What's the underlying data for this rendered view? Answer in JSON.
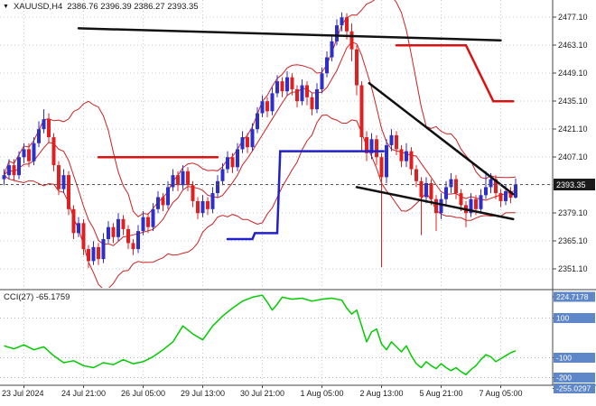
{
  "header": {
    "marker": "▼",
    "symbol": "XAUUSD,H4",
    "ohlc": "2386.76 2396.39 2386.27 2393.35"
  },
  "price_axis": {
    "labels": [
      "2477.10",
      "2463.10",
      "2449.10",
      "2435.10",
      "2421.10",
      "2407.10",
      "2379.10",
      "2365.10",
      "2351.10"
    ],
    "current": "2393.35"
  },
  "time_axis": {
    "labels": [
      "23 Jul 2024",
      "24 Jul 21:00",
      "26 Jul 05:00",
      "29 Jul 13:00",
      "30 Jul 21:00",
      "1 Aug 05:00",
      "2 Aug 13:00",
      "5 Aug 21:00",
      "7 Aug 05:00"
    ]
  },
  "indicator_panel": {
    "label": "CCI(27) -65.1759",
    "name": "CCI",
    "period": 27,
    "current_value": -65.1759,
    "axis_max": "224.7178",
    "axis_min": "-255.0297",
    "levels": [
      100,
      -100,
      -200
    ]
  },
  "colors": {
    "background": "#ffffff",
    "grid": "#c9c9c9",
    "bull": "#2e2ec8",
    "bear": "#e02020",
    "band": "#cc2222",
    "level_blue": "#2020cc",
    "resistance_red": "#dd1111",
    "trendline": "#111111",
    "cci_line": "#00cc00",
    "axis_text": "#1a1a1a",
    "price_box_bg": "#1a1a1a",
    "price_box_text": "#ffffff",
    "cci_level_box_bg": "#5d87c9",
    "separator": "#a0a0a0"
  },
  "chart_data": {
    "type": "candlestick",
    "symbol": "XAUUSD",
    "timeframe": "H4",
    "title": "XAUUSD,H4",
    "y_axis": {
      "min": 2351.1,
      "max": 2477.1,
      "tick_step": 14.0
    },
    "x_grid_candle_indices": [
      4,
      16,
      28,
      40,
      52,
      64,
      76,
      88,
      100
    ],
    "current_price": 2393.35,
    "candles": [
      [
        2396,
        2401,
        2393,
        2398
      ],
      [
        2398,
        2406,
        2396,
        2403
      ],
      [
        2403,
        2406,
        2395,
        2398
      ],
      [
        2398,
        2410,
        2396,
        2407
      ],
      [
        2407,
        2414,
        2404,
        2411
      ],
      [
        2411,
        2414,
        2402,
        2405
      ],
      [
        2405,
        2417,
        2403,
        2414
      ],
      [
        2414,
        2425,
        2412,
        2421
      ],
      [
        2421,
        2431,
        2419,
        2426
      ],
      [
        2426,
        2429,
        2414,
        2417
      ],
      [
        2417,
        2419,
        2400,
        2403
      ],
      [
        2403,
        2405,
        2388,
        2391
      ],
      [
        2391,
        2401,
        2389,
        2398
      ],
      [
        2398,
        2400,
        2378,
        2381
      ],
      [
        2381,
        2383,
        2366,
        2369
      ],
      [
        2369,
        2377,
        2367,
        2374
      ],
      [
        2374,
        2376,
        2358,
        2361
      ],
      [
        2361,
        2363,
        2351.5,
        2355
      ],
      [
        2355,
        2365,
        2353,
        2362
      ],
      [
        2362,
        2364,
        2353,
        2356
      ],
      [
        2356,
        2369,
        2354,
        2366
      ],
      [
        2366,
        2375,
        2364,
        2372
      ],
      [
        2372,
        2374,
        2364,
        2367
      ],
      [
        2367,
        2379,
        2365,
        2376
      ],
      [
        2376,
        2378,
        2368,
        2371
      ],
      [
        2371,
        2373,
        2361,
        2364
      ],
      [
        2364,
        2366,
        2358,
        2361
      ],
      [
        2361,
        2373,
        2359,
        2370
      ],
      [
        2370,
        2380,
        2368,
        2377
      ],
      [
        2377,
        2379,
        2369,
        2372
      ],
      [
        2372,
        2384,
        2370,
        2381
      ],
      [
        2381,
        2390,
        2379,
        2387
      ],
      [
        2387,
        2389,
        2380,
        2383
      ],
      [
        2383,
        2395,
        2381,
        2392
      ],
      [
        2392,
        2401,
        2390,
        2398
      ],
      [
        2398,
        2400,
        2390,
        2393
      ],
      [
        2393,
        2403,
        2391,
        2400
      ],
      [
        2400,
        2402,
        2390,
        2393
      ],
      [
        2393,
        2395,
        2382,
        2385
      ],
      [
        2385,
        2387,
        2376,
        2379
      ],
      [
        2379,
        2388,
        2377,
        2385
      ],
      [
        2385,
        2387,
        2378,
        2381
      ],
      [
        2381,
        2392,
        2379,
        2389
      ],
      [
        2389,
        2398,
        2387,
        2395
      ],
      [
        2395,
        2404,
        2393,
        2401
      ],
      [
        2401,
        2410,
        2399,
        2407
      ],
      [
        2407,
        2409,
        2399,
        2402
      ],
      [
        2402,
        2414,
        2400,
        2411
      ],
      [
        2411,
        2420,
        2409,
        2417
      ],
      [
        2417,
        2419,
        2409,
        2412
      ],
      [
        2412,
        2424,
        2410,
        2421
      ],
      [
        2421,
        2432,
        2419,
        2429
      ],
      [
        2429,
        2438,
        2427,
        2435
      ],
      [
        2435,
        2437,
        2427,
        2430
      ],
      [
        2430,
        2442,
        2428,
        2439
      ],
      [
        2439,
        2448,
        2437,
        2445
      ],
      [
        2445,
        2447,
        2437,
        2440
      ],
      [
        2440,
        2450,
        2438,
        2447
      ],
      [
        2447,
        2449,
        2438,
        2441
      ],
      [
        2441,
        2443,
        2432,
        2435
      ],
      [
        2435,
        2446,
        2433,
        2443
      ],
      [
        2443,
        2445,
        2433,
        2437
      ],
      [
        2437,
        2439,
        2428,
        2431
      ],
      [
        2431,
        2444,
        2429,
        2441
      ],
      [
        2441,
        2452,
        2439,
        2449
      ],
      [
        2449,
        2460,
        2447,
        2457
      ],
      [
        2457,
        2468,
        2455,
        2465
      ],
      [
        2465,
        2476,
        2463,
        2473
      ],
      [
        2473,
        2479.5,
        2470,
        2477
      ],
      [
        2477,
        2479,
        2466,
        2470
      ],
      [
        2470,
        2474,
        2455,
        2461
      ],
      [
        2461,
        2463,
        2438,
        2443
      ],
      [
        2443,
        2445,
        2410,
        2417
      ],
      [
        2417,
        2420,
        2405,
        2409
      ],
      [
        2409,
        2419,
        2406,
        2416
      ],
      [
        2416,
        2418,
        2403,
        2407
      ],
      [
        2407,
        2409,
        2352,
        2397
      ],
      [
        2397,
        2416,
        2394,
        2413
      ],
      [
        2413,
        2421,
        2410,
        2418
      ],
      [
        2418,
        2420,
        2408,
        2411
      ],
      [
        2411,
        2413,
        2402,
        2405
      ],
      [
        2405,
        2414,
        2402,
        2410
      ],
      [
        2410,
        2412,
        2398,
        2401
      ],
      [
        2401,
        2403,
        2392,
        2395
      ],
      [
        2395,
        2397,
        2368,
        2387
      ],
      [
        2387,
        2397,
        2384,
        2394
      ],
      [
        2394,
        2396,
        2383,
        2386
      ],
      [
        2386,
        2388,
        2370,
        2379
      ],
      [
        2379,
        2389,
        2376,
        2386
      ],
      [
        2386,
        2395,
        2383,
        2392
      ],
      [
        2392,
        2399,
        2389,
        2396
      ],
      [
        2396,
        2398,
        2386,
        2389
      ],
      [
        2389,
        2391,
        2380,
        2383
      ],
      [
        2383,
        2385,
        2372,
        2379
      ],
      [
        2379,
        2389,
        2377,
        2386
      ],
      [
        2386,
        2388,
        2378,
        2381
      ],
      [
        2381,
        2391,
        2379,
        2388
      ],
      [
        2388,
        2400,
        2386,
        2392
      ],
      [
        2392,
        2399,
        2389,
        2396
      ],
      [
        2396,
        2398,
        2386,
        2389
      ],
      [
        2389,
        2391,
        2382,
        2385
      ],
      [
        2385,
        2393,
        2383,
        2390
      ],
      [
        2390,
        2392,
        2384,
        2386.76
      ],
      [
        2386.76,
        2396.39,
        2386.27,
        2393.35
      ]
    ],
    "overlays": {
      "blue_level_line": [
        [
          45,
          2366
        ],
        [
          50,
          2366
        ],
        [
          50.5,
          2369
        ],
        [
          55,
          2369
        ],
        [
          55.6,
          2410
        ],
        [
          76.4,
          2410
        ]
      ],
      "red_resistance_lines": [
        [
          [
            19,
            2407
          ],
          [
            43,
            2407
          ]
        ],
        [
          [
            79,
            2463
          ],
          [
            93,
            2463
          ],
          [
            98.5,
            2435
          ],
          [
            102.5,
            2435
          ]
        ]
      ],
      "black_trendlines": [
        [
          [
            15,
            2471.5
          ],
          [
            100,
            2465.5
          ]
        ],
        [
          [
            73.5,
            2444
          ],
          [
            102.5,
            2388.5
          ]
        ],
        [
          [
            71,
            2392
          ],
          [
            102.5,
            2376
          ]
        ]
      ]
    },
    "cci": {
      "period": 27,
      "current": -65.1759,
      "points": [
        [
          0,
          -40
        ],
        [
          2,
          -55
        ],
        [
          4,
          -35
        ],
        [
          6,
          -60
        ],
        [
          8,
          -45
        ],
        [
          10,
          -90
        ],
        [
          12,
          -125
        ],
        [
          14,
          -115
        ],
        [
          16,
          -140
        ],
        [
          18,
          -150
        ],
        [
          20,
          -125
        ],
        [
          22,
          -135
        ],
        [
          24,
          -110
        ],
        [
          26,
          -130
        ],
        [
          28,
          -120
        ],
        [
          30,
          -95
        ],
        [
          32,
          -60
        ],
        [
          34,
          -20
        ],
        [
          36,
          60
        ],
        [
          38,
          20
        ],
        [
          40,
          -10
        ],
        [
          42,
          60
        ],
        [
          44,
          110
        ],
        [
          46,
          150
        ],
        [
          48,
          185
        ],
        [
          50,
          205
        ],
        [
          52,
          215
        ],
        [
          53,
          180
        ],
        [
          54,
          140
        ],
        [
          55,
          170
        ],
        [
          56,
          205
        ],
        [
          58,
          195
        ],
        [
          60,
          200
        ],
        [
          62,
          185
        ],
        [
          64,
          195
        ],
        [
          66,
          200
        ],
        [
          68,
          190
        ],
        [
          69,
          150
        ],
        [
          70,
          120
        ],
        [
          71,
          140
        ],
        [
          72,
          60
        ],
        [
          73,
          -20
        ],
        [
          74,
          30
        ],
        [
          75,
          45
        ],
        [
          76,
          -30
        ],
        [
          77,
          -60
        ],
        [
          78,
          -20
        ],
        [
          79,
          -45
        ],
        [
          80,
          -70
        ],
        [
          81,
          -40
        ],
        [
          82,
          -90
        ],
        [
          83,
          -130
        ],
        [
          84,
          -150
        ],
        [
          85,
          -120
        ],
        [
          86,
          -140
        ],
        [
          87,
          -155
        ],
        [
          88,
          -130
        ],
        [
          89,
          -150
        ],
        [
          90,
          -165
        ],
        [
          91,
          -150
        ],
        [
          92,
          -170
        ],
        [
          93,
          -185
        ],
        [
          94,
          -160
        ],
        [
          95,
          -140
        ],
        [
          96,
          -110
        ],
        [
          97,
          -85
        ],
        [
          98,
          -95
        ],
        [
          99,
          -120
        ],
        [
          100,
          -105
        ],
        [
          101,
          -90
        ],
        [
          102,
          -75
        ],
        [
          103,
          -65.18
        ]
      ]
    }
  }
}
